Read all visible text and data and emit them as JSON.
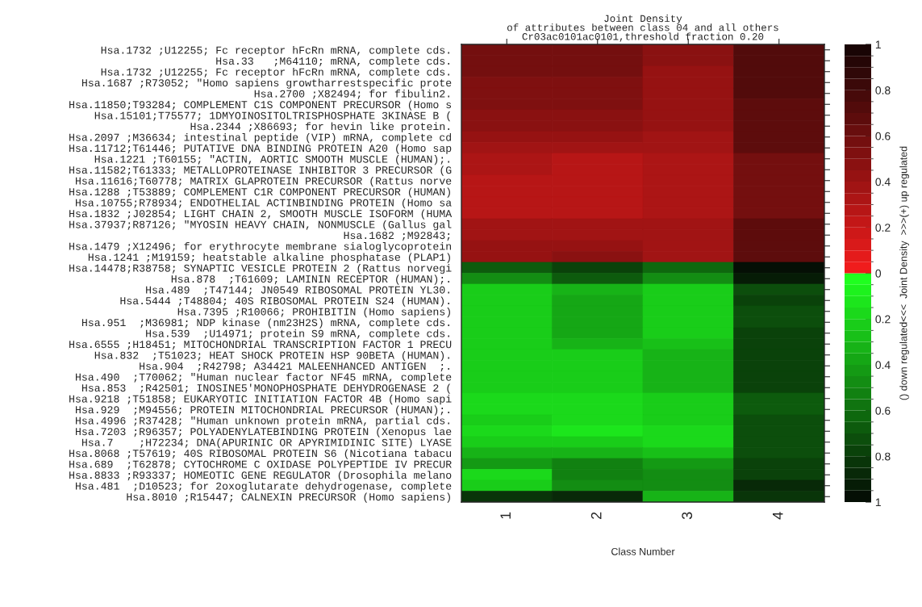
{
  "chart_data": {
    "type": "heatmap",
    "title": "Joint Density\nof attributes between class 04 and all others\nCr03ac0101ac0101,threshold fraction 0.20",
    "xlabel": "Class Number",
    "clabel": "() down regulated<<<  Joint Density  >>>(+) up regulated",
    "categories": [
      "1",
      "2",
      "3",
      "4"
    ],
    "y_categories": [
      "Hsa.1732 ;U12255; Fc receptor hFcRn mRNA, complete cds.",
      "Hsa.33   ;M64110; mRNA, complete cds.",
      "Hsa.1732 ;U12255; Fc receptor hFcRn mRNA, complete cds.",
      "Hsa.1687 ;R73052; \"Homo sapiens growtharrestspecific prote",
      "Hsa.2700 ;X82494; for fibulin2.",
      "Hsa.11850;T93284; COMPLEMENT C1S COMPONENT PRECURSOR (Homo s",
      "Hsa.15101;T75577; 1DMYOINOSITOLTRISPHOSPHATE 3KINASE B (",
      "Hsa.2344 ;X86693; for hevin like protein.",
      "Hsa.2097 ;M36634; intestinal peptide (VIP) mRNA, complete cd",
      "Hsa.11712;T61446; PUTATIVE DNA BINDING PROTEIN A20 (Homo sap",
      "Hsa.1221 ;T60155; \"ACTIN, AORTIC SMOOTH MUSCLE (HUMAN);.",
      "Hsa.11582;T61333; METALLOPROTEINASE INHIBITOR 3 PRECURSOR (G",
      "Hsa.11616;T60778; MATRIX GLAPROTEIN PRECURSOR (Rattus norve",
      "Hsa.1288 ;T53889; COMPLEMENT C1R COMPONENT PRECURSOR (HUMAN)",
      "Hsa.10755;R78934; ENDOTHELIAL ACTINBINDING PROTEIN (Homo sa",
      "Hsa.1832 ;J02854; LIGHT CHAIN 2, SMOOTH MUSCLE ISOFORM (HUMA",
      "Hsa.37937;R87126; \"MYOSIN HEAVY CHAIN, NONMUSCLE (Gallus gal",
      "Hsa.1682 ;M92843;",
      "Hsa.1479 ;X12496; for erythrocyte membrane sialoglycoprotein",
      "Hsa.1241 ;M19159; heatstable alkaline phosphatase (PLAP1)",
      "Hsa.14478;R38758; SYNAPTIC VESICLE PROTEIN 2 (Rattus norvegi",
      "Hsa.878  ;T61609; LAMININ RECEPTOR (HUMAN);.",
      "Hsa.489  ;T47144; JN0549 RIBOSOMAL PROTEIN YL30.",
      "Hsa.5444 ;T48804; 40S RIBOSOMAL PROTEIN S24 (HUMAN).",
      "Hsa.7395 ;R10066; PROHIBITIN (Homo sapiens)",
      "Hsa.951  ;M36981; NDP kinase (nm23H2S) mRNA, complete cds.",
      "Hsa.539  ;U14971; protein S9 mRNA, complete cds.",
      "Hsa.6555 ;H18451; MITOCHONDRIAL TRANSCRIPTION FACTOR 1 PRECU",
      "Hsa.832  ;T51023; HEAT SHOCK PROTEIN HSP 90BETA (HUMAN).",
      "Hsa.904  ;R42798; A34421 MALEENHANCED ANTIGEN  ;.",
      "Hsa.490  ;T70062; \"Human nuclear factor NF45 mRNA, complete",
      "Hsa.853  ;R42501; INOSINE5'MONOPHOSPHATE DEHYDROGENASE 2 (",
      "Hsa.9218 ;T51858; EUKARYOTIC INITIATION FACTOR 4B (Homo sapi",
      "Hsa.929  ;M94556; PROTEIN MITOCHONDRIAL PRECURSOR (HUMAN);.",
      "Hsa.4996 ;R37428; \"Human unknown protein mRNA, partial cds.",
      "Hsa.7203 ;R96357; POLYADENYLATEBINDING PROTEIN (Xenopus lae",
      "Hsa.7    ;H72234; DNA(APURINIC OR APYRIMIDINIC SITE) LYASE",
      "Hsa.8068 ;T57619; 40S RIBOSOMAL PROTEIN S6 (Nicotiana tabacu",
      "Hsa.689  ;T62878; CYTOCHROME C OXIDASE POLYPEPTIDE IV PRECUR",
      "Hsa.8833 ;R93337; HOMEOTIC GENE REGULATOR (Drosophila melano",
      "Hsa.481  ;D10523; for 2oxoglutarate dehydrogenase, complete",
      "Hsa.8010 ;R15447; CALNEXIN PRECURSOR (Homo sapiens)"
    ],
    "cells": [
      [
        0.57,
        0.57,
        0.47,
        0.72
      ],
      [
        0.56,
        0.56,
        0.46,
        0.72
      ],
      [
        0.55,
        0.55,
        0.45,
        0.72
      ],
      [
        0.53,
        0.53,
        0.44,
        0.71
      ],
      [
        0.52,
        0.52,
        0.44,
        0.71
      ],
      [
        0.5,
        0.5,
        0.43,
        0.7
      ],
      [
        0.48,
        0.48,
        0.42,
        0.7
      ],
      [
        0.48,
        0.48,
        0.42,
        0.7
      ],
      [
        0.45,
        0.43,
        0.38,
        0.68
      ],
      [
        0.38,
        0.36,
        0.36,
        0.66
      ],
      [
        0.32,
        0.3,
        0.33,
        0.6
      ],
      [
        0.32,
        0.3,
        0.33,
        0.6
      ],
      [
        0.3,
        0.3,
        0.33,
        0.6
      ],
      [
        0.3,
        0.29,
        0.33,
        0.6
      ],
      [
        0.3,
        0.29,
        0.33,
        0.6
      ],
      [
        0.27,
        0.28,
        0.33,
        0.6
      ],
      [
        0.4,
        0.36,
        0.4,
        0.66
      ],
      [
        0.4,
        0.36,
        0.4,
        0.66
      ],
      [
        0.42,
        0.44,
        0.36,
        0.68
      ],
      [
        0.42,
        0.46,
        0.36,
        0.68
      ],
      [
        -0.7,
        -0.8,
        -0.62,
        -0.97
      ],
      [
        -0.5,
        -0.7,
        -0.5,
        -0.95
      ],
      [
        -0.2,
        -0.32,
        -0.2,
        -0.72
      ],
      [
        -0.22,
        -0.36,
        -0.22,
        -0.76
      ],
      [
        -0.23,
        -0.36,
        -0.21,
        -0.74
      ],
      [
        -0.23,
        -0.36,
        -0.21,
        -0.74
      ],
      [
        -0.23,
        -0.36,
        -0.25,
        -0.78
      ],
      [
        -0.23,
        -0.32,
        -0.27,
        -0.78
      ],
      [
        -0.2,
        -0.24,
        -0.3,
        -0.76
      ],
      [
        -0.2,
        -0.22,
        -0.31,
        -0.76
      ],
      [
        -0.2,
        -0.2,
        -0.32,
        -0.76
      ],
      [
        -0.2,
        -0.2,
        -0.32,
        -0.76
      ],
      [
        -0.17,
        -0.17,
        -0.23,
        -0.68
      ],
      [
        -0.17,
        -0.18,
        -0.21,
        -0.68
      ],
      [
        -0.2,
        -0.16,
        -0.2,
        -0.72
      ],
      [
        -0.19,
        -0.13,
        -0.19,
        -0.72
      ],
      [
        -0.23,
        -0.2,
        -0.18,
        -0.72
      ],
      [
        -0.3,
        -0.32,
        -0.27,
        -0.72
      ],
      [
        -0.4,
        -0.52,
        -0.42,
        -0.8
      ],
      [
        -0.18,
        -0.52,
        -0.45,
        -0.8
      ],
      [
        -0.22,
        -0.5,
        -0.45,
        -0.9
      ],
      [
        -0.85,
        -0.9,
        -0.3,
        -0.82
      ]
    ],
    "clim": [
      -1,
      1
    ],
    "cticks": [
      {
        "value": -1,
        "label": "1"
      },
      {
        "value": -0.8,
        "label": "0.8"
      },
      {
        "value": -0.6,
        "label": "0.6"
      },
      {
        "value": -0.4,
        "label": "0.4"
      },
      {
        "value": -0.2,
        "label": "0.2"
      },
      0,
      0.2,
      0.4,
      0.6,
      0.8,
      1
    ]
  }
}
